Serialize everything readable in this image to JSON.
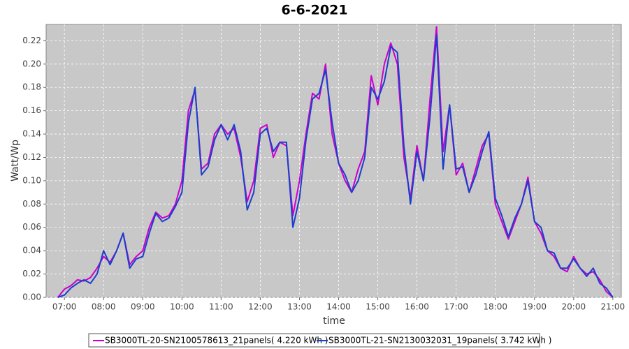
{
  "chart_data": {
    "type": "line",
    "title": "6-6-2021",
    "x_label": "time",
    "y_label": "Watt/Wp",
    "x": [
      "06:50",
      "07:00",
      "07:10",
      "07:20",
      "07:30",
      "07:40",
      "07:50",
      "08:00",
      "08:10",
      "08:20",
      "08:30",
      "08:40",
      "08:50",
      "09:00",
      "09:10",
      "09:20",
      "09:30",
      "09:40",
      "09:50",
      "10:00",
      "10:10",
      "10:20",
      "10:30",
      "10:40",
      "10:50",
      "11:00",
      "11:10",
      "11:20",
      "11:30",
      "11:40",
      "11:50",
      "12:00",
      "12:10",
      "12:20",
      "12:30",
      "12:40",
      "12:50",
      "13:00",
      "13:10",
      "13:20",
      "13:30",
      "13:40",
      "13:50",
      "14:00",
      "14:10",
      "14:20",
      "14:30",
      "14:40",
      "14:50",
      "15:00",
      "15:10",
      "15:20",
      "15:30",
      "15:40",
      "15:50",
      "16:00",
      "16:10",
      "16:20",
      "16:30",
      "16:40",
      "16:50",
      "17:00",
      "17:10",
      "17:20",
      "17:30",
      "17:40",
      "17:50",
      "18:00",
      "18:10",
      "18:20",
      "18:30",
      "18:40",
      "18:50",
      "19:00",
      "19:10",
      "19:20",
      "19:30",
      "19:40",
      "19:50",
      "20:00",
      "20:10",
      "20:20",
      "20:30",
      "20:40",
      "20:50",
      "21:00"
    ],
    "series": [
      {
        "name": "SB3000TL-20-SN2100578613_21panels( 4.220 kWh )",
        "color": "#cc00cc",
        "values": [
          0.0,
          0.007,
          0.01,
          0.015,
          0.014,
          0.017,
          0.025,
          0.035,
          0.03,
          0.04,
          0.055,
          0.028,
          0.035,
          0.04,
          0.06,
          0.073,
          0.068,
          0.07,
          0.08,
          0.1,
          0.16,
          0.178,
          0.11,
          0.115,
          0.14,
          0.148,
          0.14,
          0.145,
          0.12,
          0.082,
          0.1,
          0.145,
          0.148,
          0.12,
          0.133,
          0.13,
          0.07,
          0.1,
          0.14,
          0.175,
          0.17,
          0.2,
          0.14,
          0.115,
          0.1,
          0.09,
          0.11,
          0.125,
          0.19,
          0.165,
          0.2,
          0.218,
          0.2,
          0.12,
          0.085,
          0.13,
          0.1,
          0.17,
          0.232,
          0.125,
          0.165,
          0.105,
          0.115,
          0.09,
          0.11,
          0.13,
          0.14,
          0.08,
          0.065,
          0.05,
          0.065,
          0.08,
          0.103,
          0.065,
          0.055,
          0.04,
          0.035,
          0.025,
          0.022,
          0.035,
          0.025,
          0.02,
          0.022,
          0.015,
          0.005,
          0.0
        ]
      },
      {
        "name": "SB3000TL-21-SN2130032031_19panels( 3.742 kWh )",
        "color": "#1a3fcc",
        "values": [
          0.0,
          0.002,
          0.008,
          0.012,
          0.015,
          0.012,
          0.02,
          0.04,
          0.028,
          0.04,
          0.055,
          0.025,
          0.033,
          0.035,
          0.055,
          0.072,
          0.065,
          0.068,
          0.078,
          0.09,
          0.15,
          0.18,
          0.105,
          0.112,
          0.135,
          0.148,
          0.135,
          0.148,
          0.125,
          0.075,
          0.09,
          0.14,
          0.145,
          0.125,
          0.133,
          0.133,
          0.06,
          0.085,
          0.135,
          0.17,
          0.175,
          0.195,
          0.15,
          0.115,
          0.105,
          0.09,
          0.1,
          0.12,
          0.18,
          0.17,
          0.185,
          0.215,
          0.21,
          0.13,
          0.08,
          0.125,
          0.1,
          0.155,
          0.225,
          0.11,
          0.165,
          0.11,
          0.112,
          0.09,
          0.105,
          0.125,
          0.142,
          0.085,
          0.07,
          0.052,
          0.068,
          0.08,
          0.1,
          0.065,
          0.06,
          0.04,
          0.038,
          0.025,
          0.025,
          0.033,
          0.025,
          0.018,
          0.025,
          0.012,
          0.008,
          0.0
        ]
      }
    ],
    "xlim": [
      "06:32",
      "21:13"
    ],
    "xticks": [
      "07:00",
      "08:00",
      "09:00",
      "10:00",
      "11:00",
      "12:00",
      "13:00",
      "14:00",
      "15:00",
      "16:00",
      "17:00",
      "18:00",
      "19:00",
      "20:00",
      "21:00"
    ],
    "ylim": [
      0,
      0.234
    ],
    "yticks": [
      {
        "value": 0,
        "label": "0.00"
      },
      {
        "value": 0.02,
        "label": "0.02"
      },
      {
        "value": 0.04,
        "label": "0.04"
      },
      {
        "value": 0.06,
        "label": "0.06"
      },
      {
        "value": 0.08,
        "label": "0.08"
      },
      {
        "value": 0.1,
        "label": "0.10"
      },
      {
        "value": 0.12,
        "label": "0.12"
      },
      {
        "value": 0.14,
        "label": "0.14"
      },
      {
        "value": 0.16,
        "label": "0.16"
      },
      {
        "value": 0.18,
        "label": "0.18"
      },
      {
        "value": 0.2,
        "label": "0.20"
      },
      {
        "value": 0.22,
        "label": "0.22"
      }
    ],
    "grid": true,
    "legend_position": "bottom"
  }
}
